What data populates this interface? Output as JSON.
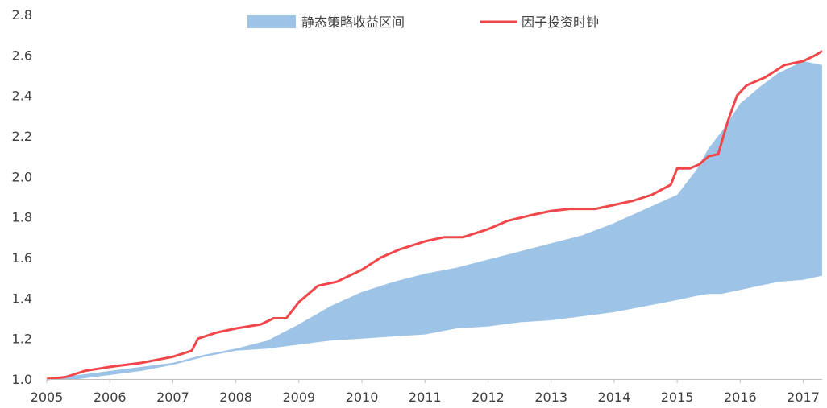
{
  "chart_data": {
    "type": "area",
    "title": "",
    "xlabel": "",
    "ylabel": "",
    "xlim": [
      2005.0,
      2017.3
    ],
    "ylim": [
      1.0,
      2.8
    ],
    "grid": false,
    "legend_position": "top-center",
    "x_ticks": [
      "2005",
      "2006",
      "2007",
      "2008",
      "2009",
      "2010",
      "2011",
      "2012",
      "2013",
      "2014",
      "2015",
      "2016",
      "2017"
    ],
    "y_ticks": [
      "1.0",
      "1.2",
      "1.4",
      "1.6",
      "1.8",
      "2.0",
      "2.2",
      "2.4",
      "2.6",
      "2.8"
    ],
    "series": [
      {
        "name": "静态策略收益区间",
        "kind": "band",
        "color": "#9dc3e6",
        "x": [
          2005.0,
          2005.5,
          2006.0,
          2006.5,
          2007.0,
          2007.5,
          2008.0,
          2008.5,
          2009.0,
          2009.5,
          2010.0,
          2010.5,
          2011.0,
          2011.5,
          2012.0,
          2012.5,
          2013.0,
          2013.5,
          2014.0,
          2014.5,
          2015.0,
          2015.3,
          2015.5,
          2015.7,
          2016.0,
          2016.3,
          2016.6,
          2017.0,
          2017.3
        ],
        "upper": [
          1.0,
          1.02,
          1.04,
          1.06,
          1.08,
          1.12,
          1.15,
          1.19,
          1.27,
          1.36,
          1.43,
          1.48,
          1.52,
          1.55,
          1.59,
          1.63,
          1.67,
          1.71,
          1.77,
          1.84,
          1.91,
          2.03,
          2.14,
          2.22,
          2.36,
          2.44,
          2.51,
          2.57,
          2.55
        ],
        "lower": [
          1.0,
          1.0,
          1.02,
          1.04,
          1.07,
          1.11,
          1.14,
          1.15,
          1.17,
          1.19,
          1.2,
          1.21,
          1.22,
          1.25,
          1.26,
          1.28,
          1.29,
          1.31,
          1.33,
          1.36,
          1.39,
          1.41,
          1.42,
          1.42,
          1.44,
          1.46,
          1.48,
          1.49,
          1.51
        ]
      },
      {
        "name": "因子投资时钟",
        "kind": "line",
        "color": "#f0474b",
        "x": [
          2005.0,
          2005.3,
          2005.6,
          2006.0,
          2006.5,
          2007.0,
          2007.3,
          2007.4,
          2007.7,
          2008.0,
          2008.4,
          2008.6,
          2008.8,
          2009.0,
          2009.3,
          2009.6,
          2010.0,
          2010.3,
          2010.6,
          2011.0,
          2011.3,
          2011.6,
          2012.0,
          2012.3,
          2012.7,
          2013.0,
          2013.3,
          2013.7,
          2014.0,
          2014.3,
          2014.6,
          2014.9,
          2015.0,
          2015.2,
          2015.35,
          2015.5,
          2015.65,
          2015.8,
          2015.95,
          2016.1,
          2016.4,
          2016.7,
          2017.0,
          2017.2,
          2017.3
        ],
        "values": [
          1.0,
          1.01,
          1.04,
          1.06,
          1.08,
          1.11,
          1.14,
          1.2,
          1.23,
          1.25,
          1.27,
          1.3,
          1.3,
          1.38,
          1.46,
          1.48,
          1.54,
          1.6,
          1.64,
          1.68,
          1.7,
          1.7,
          1.74,
          1.78,
          1.81,
          1.83,
          1.84,
          1.84,
          1.86,
          1.88,
          1.91,
          1.96,
          2.04,
          2.04,
          2.06,
          2.1,
          2.11,
          2.27,
          2.4,
          2.45,
          2.49,
          2.55,
          2.57,
          2.6,
          2.62
        ]
      }
    ]
  }
}
